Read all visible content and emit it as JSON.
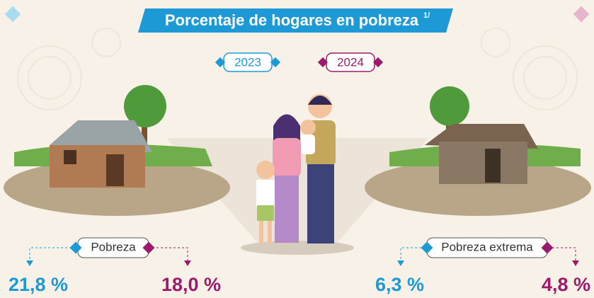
{
  "header": {
    "title": "Porcentaje de hogares en pobreza",
    "note_mark": "1/"
  },
  "years": [
    "2023",
    "2024"
  ],
  "groups": [
    {
      "label": "Pobreza",
      "values": [
        "21,8 %",
        "18,0 %"
      ]
    },
    {
      "label": "Pobreza extrema",
      "values": [
        "6,3 %",
        "4,8 %"
      ]
    }
  ]
}
